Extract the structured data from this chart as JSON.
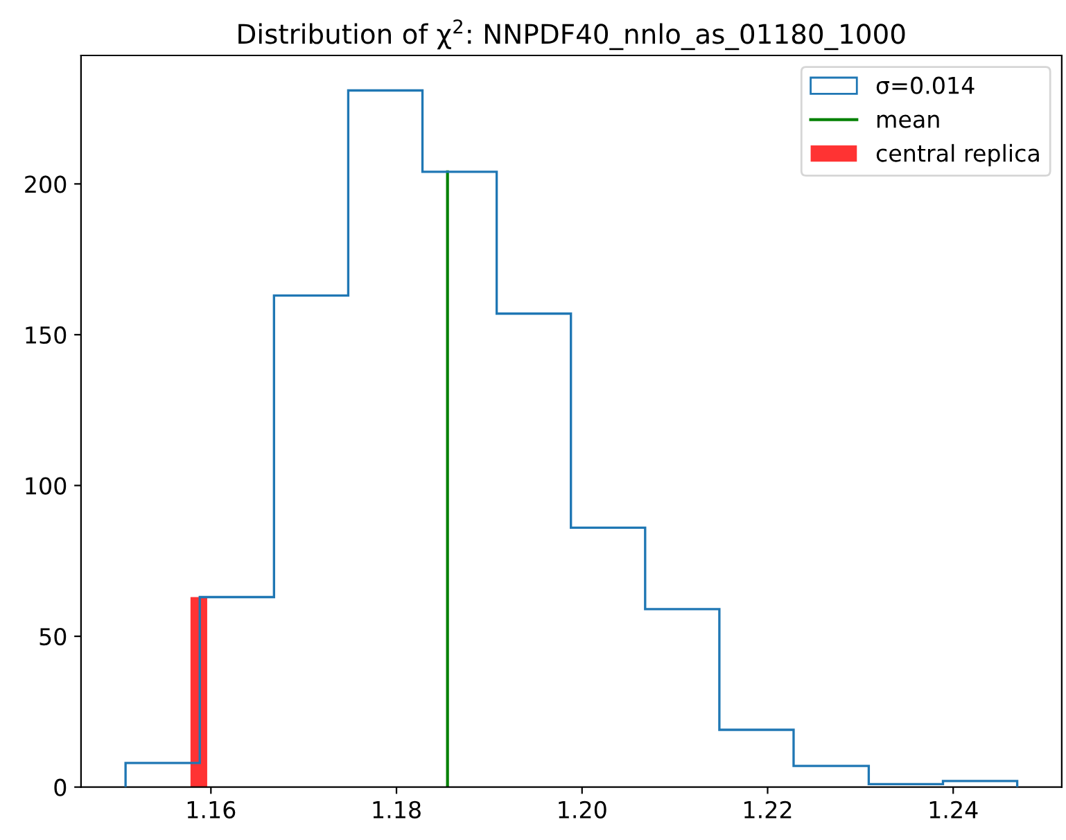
{
  "chart_data": {
    "type": "histogram",
    "title": "Distribution of χ$^{2}$: NNPDF40_nnlo_as_01180_1000",
    "series": [
      {
        "name": "σ=0.014",
        "line_style": "solid",
        "color": "#1f77b4",
        "bins": [
          1.1508,
          1.1588,
          1.1668,
          1.1748,
          1.1828,
          1.1908,
          1.1988,
          1.2068,
          1.2148,
          1.2228,
          1.2309,
          1.2389,
          1.2469
        ],
        "values": [
          8,
          63,
          163,
          231,
          204,
          157,
          86,
          59,
          19,
          7,
          1,
          2
        ]
      },
      {
        "name": "mean",
        "type": "line",
        "color": "#008000",
        "x": [
          1.1855,
          1.1855
        ],
        "values": [
          0,
          204
        ]
      },
      {
        "name": "central replica",
        "color": "#ff3333",
        "bins": [
          1.1578,
          1.1596
        ],
        "values": [
          63
        ]
      }
    ],
    "xlim": [
      1.146,
      1.2517
    ],
    "xticks": [
      {
        "value": 1.16,
        "label": "1.16"
      },
      {
        "value": 1.18,
        "label": "1.18"
      },
      {
        "value": 1.2,
        "label": "1.20"
      },
      {
        "value": 1.22,
        "label": "1.22"
      },
      {
        "value": 1.24,
        "label": "1.24"
      }
    ],
    "ylim": [
      0,
      242.6
    ],
    "yticks": [
      0,
      50,
      100,
      150,
      200
    ],
    "legend": "top right"
  }
}
